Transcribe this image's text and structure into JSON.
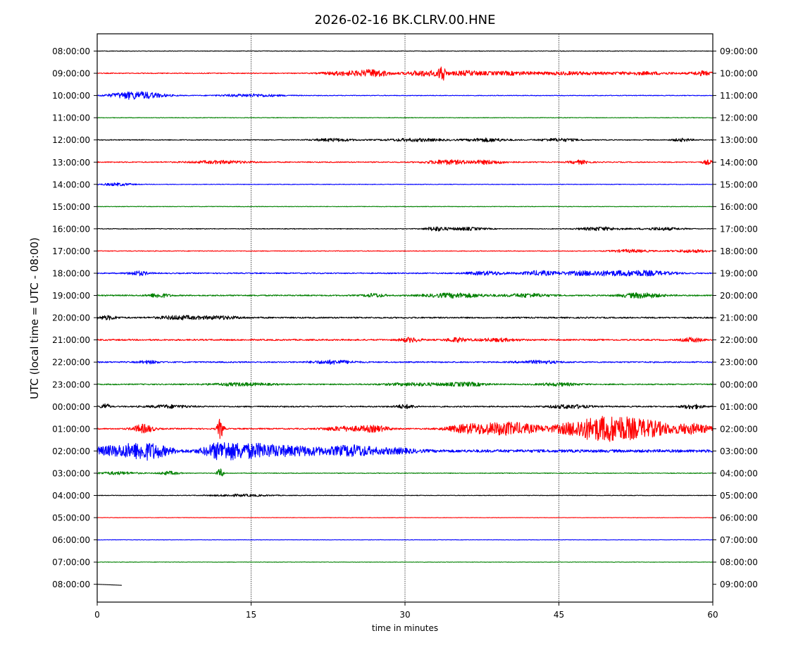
{
  "chart_data": {
    "type": "line",
    "title": "2026-02-16 BK.CLRV.00.HNE",
    "xlabel": "time in minutes",
    "ylabel": "UTC (local time = UTC - 08:00)",
    "xlim": [
      0,
      60
    ],
    "x_ticks": [
      0,
      15,
      30,
      45,
      60
    ],
    "grid_x": [
      15,
      30,
      45
    ],
    "color_cycle": [
      "#000000",
      "#ff0000",
      "#0000ff",
      "#008000"
    ],
    "rows": [
      {
        "left": "08:00:00",
        "right": "09:00:00",
        "amp": 0.4,
        "bursts": []
      },
      {
        "left": "09:00:00",
        "right": "10:00:00",
        "amp": 0.6,
        "bursts": [
          [
            24,
            2,
            3
          ],
          [
            27,
            1.5,
            5
          ],
          [
            32,
            2,
            4
          ],
          [
            33.6,
            0.3,
            12
          ],
          [
            36,
            1.5,
            3
          ],
          [
            40,
            3,
            2.5
          ],
          [
            46,
            3,
            2
          ],
          [
            53,
            4,
            2
          ],
          [
            59,
            1,
            3
          ]
        ]
      },
      {
        "left": "10:00:00",
        "right": "11:00:00",
        "amp": 0.5,
        "bursts": [
          [
            3,
            2,
            4
          ],
          [
            5,
            2,
            3
          ],
          [
            15,
            3,
            2
          ]
        ]
      },
      {
        "left": "11:00:00",
        "right": "12:00:00",
        "amp": 0.4,
        "bursts": []
      },
      {
        "left": "12:00:00",
        "right": "13:00:00",
        "amp": 0.6,
        "bursts": [
          [
            23,
            2,
            2
          ],
          [
            31,
            3,
            2
          ],
          [
            38,
            2,
            2.5
          ],
          [
            45,
            2,
            2
          ],
          [
            57,
            1,
            2
          ]
        ]
      },
      {
        "left": "13:00:00",
        "right": "14:00:00",
        "amp": 0.7,
        "bursts": [
          [
            12,
            3,
            2
          ],
          [
            34,
            2,
            3
          ],
          [
            38,
            2,
            2.5
          ],
          [
            47,
            1,
            2.5
          ],
          [
            59.5,
            0.5,
            3
          ]
        ]
      },
      {
        "left": "14:00:00",
        "right": "15:00:00",
        "amp": 0.4,
        "bursts": [
          [
            2,
            1.5,
            2
          ]
        ]
      },
      {
        "left": "15:00:00",
        "right": "16:00:00",
        "amp": 0.4,
        "bursts": []
      },
      {
        "left": "16:00:00",
        "right": "17:00:00",
        "amp": 0.5,
        "bursts": [
          [
            33,
            1,
            3
          ],
          [
            36,
            2,
            2
          ],
          [
            49,
            2,
            2.5
          ],
          [
            55,
            2,
            2
          ]
        ]
      },
      {
        "left": "17:00:00",
        "right": "18:00:00",
        "amp": 0.5,
        "bursts": [
          [
            52,
            2,
            2
          ],
          [
            58,
            2,
            2
          ]
        ]
      },
      {
        "left": "18:00:00",
        "right": "19:00:00",
        "amp": 0.8,
        "bursts": [
          [
            4,
            1,
            3
          ],
          [
            38,
            2,
            2.5
          ],
          [
            43,
            1.5,
            3
          ],
          [
            48,
            3,
            3
          ],
          [
            53,
            3,
            3.5
          ]
        ]
      },
      {
        "left": "19:00:00",
        "right": "20:00:00",
        "amp": 0.9,
        "bursts": [
          [
            6,
            1,
            3
          ],
          [
            27,
            1,
            2.5
          ],
          [
            35,
            3,
            3
          ],
          [
            42,
            2,
            2.5
          ],
          [
            53,
            2,
            3.5
          ]
        ]
      },
      {
        "left": "20:00:00",
        "right": "21:00:00",
        "amp": 1.0,
        "bursts": [
          [
            1,
            1,
            2.5
          ],
          [
            8,
            2,
            2.5
          ],
          [
            12,
            2,
            2
          ]
        ]
      },
      {
        "left": "21:00:00",
        "right": "22:00:00",
        "amp": 1.0,
        "bursts": [
          [
            30.5,
            1,
            3
          ],
          [
            35,
            1,
            3
          ],
          [
            39,
            2,
            2
          ],
          [
            58,
            1,
            3
          ]
        ]
      },
      {
        "left": "22:00:00",
        "right": "23:00:00",
        "amp": 0.9,
        "bursts": [
          [
            5,
            1,
            2
          ],
          [
            23,
            2,
            2.5
          ],
          [
            43,
            2,
            2
          ]
        ]
      },
      {
        "left": "23:00:00",
        "right": "00:00:00",
        "amp": 0.8,
        "bursts": [
          [
            14,
            3,
            2
          ],
          [
            31,
            3,
            2
          ],
          [
            36,
            2,
            2.5
          ],
          [
            45,
            2,
            2
          ]
        ]
      },
      {
        "left": "00:00:00",
        "right": "01:00:00",
        "amp": 0.9,
        "bursts": [
          [
            0.8,
            0.4,
            4
          ],
          [
            7,
            2,
            2
          ],
          [
            30,
            1,
            2.5
          ],
          [
            46,
            2,
            2.5
          ],
          [
            58,
            1,
            3
          ]
        ]
      },
      {
        "left": "01:00:00",
        "right": "02:00:00",
        "amp": 0.9,
        "bursts": [
          [
            4.5,
            1,
            6
          ],
          [
            12,
            0.3,
            14
          ],
          [
            24,
            2,
            3
          ],
          [
            27,
            1.5,
            4
          ],
          [
            36,
            2,
            5
          ],
          [
            40,
            3,
            9
          ],
          [
            48,
            3,
            14
          ],
          [
            51,
            2,
            12
          ],
          [
            54,
            2,
            10
          ],
          [
            58,
            2,
            7
          ]
        ]
      },
      {
        "left": "02:00:00",
        "right": "03:00:00",
        "amp": 2.0,
        "bursts": [
          [
            2,
            3,
            6
          ],
          [
            5,
            2,
            9
          ],
          [
            12,
            1.5,
            9
          ],
          [
            15,
            3,
            9
          ],
          [
            20,
            3,
            5
          ],
          [
            25,
            2,
            7
          ],
          [
            29,
            2,
            3
          ]
        ]
      },
      {
        "left": "03:00:00",
        "right": "04:00:00",
        "amp": 0.5,
        "bursts": [
          [
            2,
            2,
            2
          ],
          [
            7,
            1,
            2.5
          ],
          [
            12,
            0.3,
            7
          ]
        ]
      },
      {
        "left": "04:00:00",
        "right": "05:00:00",
        "amp": 0.4,
        "bursts": [
          [
            14,
            3,
            1.5
          ]
        ]
      },
      {
        "left": "05:00:00",
        "right": "06:00:00",
        "amp": 0.3,
        "bursts": []
      },
      {
        "left": "06:00:00",
        "right": "07:00:00",
        "amp": 0.3,
        "bursts": []
      },
      {
        "left": "07:00:00",
        "right": "08:00:00",
        "amp": 0.3,
        "bursts": []
      },
      {
        "left": "08:00:00",
        "right": "09:00:00",
        "amp": 0.0,
        "bursts": [],
        "end_minute": 2.4
      }
    ]
  }
}
